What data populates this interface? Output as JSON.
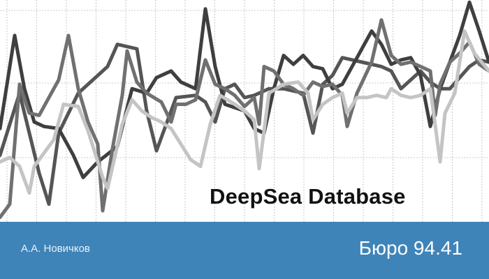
{
  "title": "DeepSea Database",
  "footer": {
    "author": "А.А. Новичков",
    "bureau": "Бюро 94.41",
    "background": "#3f84b8"
  },
  "chart_data": {
    "type": "line",
    "grid": true,
    "xlim": [
      0,
      100
    ],
    "ylim": [
      0,
      100
    ],
    "series": [
      {
        "color": "#555555",
        "points": [
          [
            0,
            30
          ],
          [
            4,
            58
          ],
          [
            8,
            22
          ],
          [
            10,
            8
          ],
          [
            12,
            40
          ],
          [
            16,
            58
          ],
          [
            22,
            70
          ],
          [
            24,
            80
          ],
          [
            28,
            78
          ],
          [
            30,
            50
          ],
          [
            32,
            32
          ],
          [
            36,
            56
          ],
          [
            40,
            57
          ],
          [
            42,
            54
          ],
          [
            44,
            45
          ],
          [
            46,
            60
          ],
          [
            48,
            62
          ],
          [
            50,
            56
          ],
          [
            52,
            57
          ],
          [
            55,
            60
          ],
          [
            58,
            60
          ],
          [
            62,
            58
          ],
          [
            64,
            40
          ],
          [
            66,
            62
          ],
          [
            68,
            66
          ],
          [
            70,
            74
          ],
          [
            74,
            72
          ],
          [
            78,
            70
          ],
          [
            80,
            68
          ],
          [
            82,
            60
          ],
          [
            84,
            64
          ],
          [
            86,
            68
          ],
          [
            88,
            63
          ],
          [
            90,
            60
          ],
          [
            92,
            60
          ],
          [
            94,
            65
          ],
          [
            96,
            70
          ],
          [
            98,
            73
          ],
          [
            100,
            72
          ]
        ]
      },
      {
        "color": "#3f3f3f",
        "points": [
          [
            0,
            42
          ],
          [
            3,
            84
          ],
          [
            5,
            60
          ],
          [
            7,
            45
          ],
          [
            9,
            43
          ],
          [
            12,
            42
          ],
          [
            15,
            30
          ],
          [
            17,
            20
          ],
          [
            20,
            27
          ],
          [
            24,
            34
          ],
          [
            27,
            60
          ],
          [
            30,
            58
          ],
          [
            32,
            65
          ],
          [
            35,
            68
          ],
          [
            37,
            63
          ],
          [
            40,
            60
          ],
          [
            42,
            96
          ],
          [
            44,
            70
          ],
          [
            46,
            53
          ],
          [
            50,
            50
          ],
          [
            52,
            42
          ],
          [
            54,
            40
          ],
          [
            56,
            60
          ],
          [
            58,
            75
          ],
          [
            60,
            71
          ],
          [
            62,
            75
          ],
          [
            64,
            70
          ],
          [
            66,
            69
          ],
          [
            68,
            60
          ],
          [
            70,
            62
          ],
          [
            72,
            70
          ],
          [
            74,
            78
          ],
          [
            76,
            86
          ],
          [
            78,
            80
          ],
          [
            80,
            71
          ],
          [
            82,
            73
          ],
          [
            84,
            74
          ],
          [
            86,
            66
          ],
          [
            88,
            43
          ],
          [
            90,
            60
          ],
          [
            92,
            72
          ],
          [
            94,
            84
          ],
          [
            96,
            99
          ],
          [
            98,
            86
          ],
          [
            100,
            72
          ]
        ]
      },
      {
        "color": "#707070",
        "points": [
          [
            0,
            2
          ],
          [
            2,
            8
          ],
          [
            4,
            62
          ],
          [
            6,
            49
          ],
          [
            8,
            48
          ],
          [
            10,
            56
          ],
          [
            12,
            64
          ],
          [
            14,
            84
          ],
          [
            16,
            60
          ],
          [
            18,
            45
          ],
          [
            20,
            35
          ],
          [
            21,
            5
          ],
          [
            23,
            33
          ],
          [
            25,
            57
          ],
          [
            26,
            77
          ],
          [
            28,
            63
          ],
          [
            30,
            58
          ],
          [
            33,
            54
          ],
          [
            35,
            45
          ],
          [
            36,
            53
          ],
          [
            38,
            53
          ],
          [
            40,
            55
          ],
          [
            42,
            73
          ],
          [
            44,
            62
          ],
          [
            46,
            60
          ],
          [
            48,
            57
          ],
          [
            50,
            52
          ],
          [
            52,
            56
          ],
          [
            53,
            44
          ],
          [
            54,
            70
          ],
          [
            56,
            68
          ],
          [
            58,
            62
          ],
          [
            60,
            60
          ],
          [
            62,
            57
          ],
          [
            64,
            63
          ],
          [
            66,
            61
          ],
          [
            68,
            62
          ],
          [
            70,
            57
          ],
          [
            71,
            43
          ],
          [
            73,
            58
          ],
          [
            76,
            72
          ],
          [
            78,
            91
          ],
          [
            80,
            75
          ],
          [
            82,
            71
          ],
          [
            84,
            72
          ],
          [
            86,
            70
          ],
          [
            88,
            68
          ],
          [
            89,
            48
          ],
          [
            90,
            62
          ],
          [
            92,
            72
          ],
          [
            94,
            76
          ],
          [
            96,
            81
          ],
          [
            98,
            71
          ],
          [
            100,
            68
          ]
        ]
      },
      {
        "color": "#c4c4c4",
        "points": [
          [
            0,
            27
          ],
          [
            2,
            29
          ],
          [
            4,
            25
          ],
          [
            6,
            13
          ],
          [
            7,
            25
          ],
          [
            9,
            31
          ],
          [
            11,
            37
          ],
          [
            13,
            53
          ],
          [
            16,
            52
          ],
          [
            18,
            41
          ],
          [
            19,
            34
          ],
          [
            21,
            20
          ],
          [
            22,
            15
          ],
          [
            25,
            44
          ],
          [
            27,
            55
          ],
          [
            29,
            50
          ],
          [
            31,
            47
          ],
          [
            33,
            45
          ],
          [
            35,
            42
          ],
          [
            37,
            35
          ],
          [
            39,
            28
          ],
          [
            41,
            25
          ],
          [
            43,
            44
          ],
          [
            45,
            57
          ],
          [
            48,
            53
          ],
          [
            50,
            50
          ],
          [
            52,
            46
          ],
          [
            53,
            24
          ],
          [
            55,
            58
          ],
          [
            58,
            62
          ],
          [
            61,
            63
          ],
          [
            63,
            58
          ],
          [
            64,
            46
          ],
          [
            66,
            53
          ],
          [
            68,
            56
          ],
          [
            70,
            58
          ],
          [
            71,
            49
          ],
          [
            73,
            56
          ],
          [
            75,
            56
          ],
          [
            77,
            57
          ],
          [
            79,
            56
          ],
          [
            80,
            60
          ],
          [
            82,
            57
          ],
          [
            84,
            56
          ],
          [
            86,
            57
          ],
          [
            88,
            60
          ],
          [
            90,
            27
          ],
          [
            91,
            49
          ],
          [
            93,
            58
          ],
          [
            94,
            72
          ],
          [
            95,
            86
          ],
          [
            97,
            76
          ],
          [
            100,
            68
          ]
        ]
      }
    ]
  }
}
